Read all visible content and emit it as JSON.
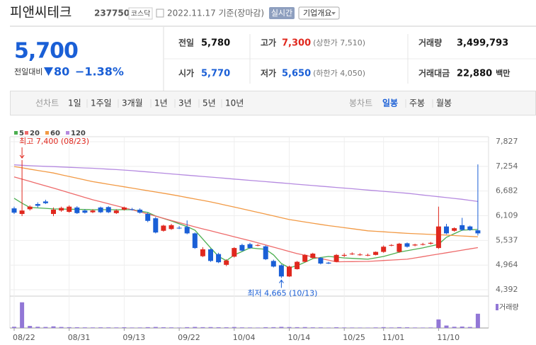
{
  "header": {
    "name": "피앤씨테크",
    "code": "237750",
    "market": "코스닥",
    "date": "2022.11.17 기준(장마감)",
    "realtime": "실시간",
    "company_info": "기업개요"
  },
  "quote": {
    "price": "5,700",
    "change_label": "전일대비",
    "change": "80",
    "change_pct": "−1.38%"
  },
  "stats": [
    [
      {
        "label": "전일",
        "value": "5,780",
        "color": "#111"
      },
      {
        "label": "고가",
        "value": "7,300",
        "note": "(상한가 7,510)",
        "color": "#e0281e"
      },
      {
        "label": "거래량",
        "value": "3,499,793",
        "color": "#111"
      }
    ],
    [
      {
        "label": "시가",
        "value": "5,770",
        "color": "#1a5fd6"
      },
      {
        "label": "저가",
        "value": "5,650",
        "note": "(하한가 4,050)",
        "color": "#1a5fd6"
      },
      {
        "label": "거래대금",
        "value": "22,880",
        "unit": "백만",
        "color": "#111"
      }
    ]
  ],
  "tabs": {
    "line_label": "선차트",
    "line_periods": [
      "1일",
      "1주일",
      "3개월",
      "1년",
      "3년",
      "5년",
      "10년"
    ],
    "candle_label": "봉차트",
    "candle_periods": [
      "일봉",
      "주봉",
      "월봉"
    ]
  },
  "chart_data": {
    "type": "candlestick",
    "categories": [
      "08/22",
      null,
      null,
      null,
      null,
      null,
      null,
      "08/31",
      null,
      null,
      null,
      null,
      null,
      null,
      "09/13",
      null,
      null,
      null,
      null,
      null,
      null,
      "09/22",
      null,
      null,
      null,
      null,
      null,
      null,
      "10/04",
      null,
      null,
      null,
      null,
      null,
      null,
      "10/14",
      null,
      null,
      null,
      null,
      null,
      null,
      "10/25",
      null,
      null,
      null,
      null,
      "11/01",
      null,
      null,
      null,
      null,
      null,
      null,
      "11/10",
      null,
      null,
      null,
      null,
      null
    ],
    "open": [
      6280,
      6150,
      6260,
      6380,
      6440,
      6150,
      6230,
      6200,
      6300,
      6230,
      6190,
      6300,
      6310,
      6170,
      6250,
      6260,
      6250,
      6150,
      6050,
      5760,
      5800,
      5830,
      5850,
      5700,
      5170,
      5330,
      5220,
      4970,
      5160,
      5430,
      5450,
      5420,
      5400,
      5060,
      4960,
      4700,
      4870,
      5040,
      5130,
      5130,
      5020,
      5040,
      5180,
      5220,
      5200,
      5190,
      5200,
      5270,
      5420,
      5270,
      5470,
      5420,
      5440,
      5460,
      5360,
      5860,
      5760,
      5890,
      5860,
      5770
    ],
    "high": [
      6320,
      7400,
      6350,
      6420,
      6480,
      6300,
      6320,
      6350,
      6330,
      6260,
      6260,
      6320,
      6330,
      6260,
      6320,
      6290,
      6280,
      6180,
      6080,
      5900,
      5920,
      5870,
      6000,
      5720,
      5380,
      5350,
      5250,
      5100,
      5380,
      5460,
      5480,
      5450,
      5420,
      5090,
      4980,
      4950,
      5060,
      5220,
      5250,
      5150,
      5040,
      5220,
      5240,
      5260,
      5240,
      5230,
      5280,
      5420,
      5450,
      5480,
      5490,
      5460,
      5480,
      5500,
      6320,
      5920,
      5840,
      6060,
      5880,
      7300
    ],
    "low": [
      6150,
      6100,
      6230,
      6300,
      6380,
      6100,
      6200,
      6180,
      6150,
      6160,
      6170,
      6170,
      6170,
      6150,
      6230,
      6230,
      6160,
      5960,
      5700,
      5740,
      5780,
      5800,
      5680,
      5340,
      5150,
      5040,
      5010,
      4940,
      5140,
      5280,
      5340,
      5400,
      5080,
      4910,
      4665,
      4690,
      4860,
      5030,
      5110,
      4980,
      4990,
      5030,
      5150,
      5200,
      5180,
      5170,
      5190,
      5250,
      5400,
      5250,
      5370,
      5400,
      5420,
      5440,
      5340,
      5680,
      5740,
      5760,
      5760,
      5650
    ],
    "close": [
      6180,
      6230,
      6320,
      6340,
      6400,
      6250,
      6290,
      6320,
      6170,
      6180,
      6230,
      6190,
      6190,
      6230,
      6300,
      6250,
      6180,
      5990,
      5720,
      5880,
      5890,
      5820,
      5700,
      5360,
      5330,
      5060,
      5030,
      5070,
      5360,
      5300,
      5360,
      5430,
      5100,
      4930,
      4700,
      4930,
      5040,
      5200,
      5230,
      5000,
      5000,
      5200,
      5200,
      5230,
      5210,
      5200,
      5270,
      5390,
      5430,
      5460,
      5390,
      5440,
      5450,
      5480,
      5860,
      5700,
      5820,
      5780,
      5780,
      5700
    ],
    "volume": [
      300000,
      6300000,
      500000,
      300000,
      250000,
      400000,
      250000,
      200000,
      180000,
      150000,
      140000,
      160000,
      150000,
      140000,
      180000,
      120000,
      130000,
      200000,
      250000,
      180000,
      150000,
      110000,
      200000,
      260000,
      200000,
      220000,
      180000,
      170000,
      240000,
      150000,
      130000,
      110000,
      190000,
      200000,
      280000,
      230000,
      200000,
      220000,
      160000,
      150000,
      110000,
      180000,
      130000,
      120000,
      110000,
      100000,
      140000,
      210000,
      130000,
      200000,
      170000,
      120000,
      110000,
      130000,
      2100000,
      600000,
      300000,
      350000,
      250000,
      3499793
    ],
    "volume_label": "거래량",
    "volume_color": "#9277d6",
    "volume_ylim": [
      0,
      6600000
    ],
    "up_color": "#e0281e",
    "down_color": "#1a5fd6",
    "moving_averages": [
      {
        "name": "5",
        "color": "#4caf50",
        "values": [
          6514,
          6400,
          6300,
          6290,
          6280,
          6267,
          6264,
          6260,
          6257,
          6254,
          6250,
          6250,
          6250,
          6250,
          6250,
          6250,
          6218,
          6185,
          6103,
          6045,
          5988,
          5922,
          5856,
          5774,
          5568,
          5363,
          5165,
          5066,
          5198,
          5280,
          5363,
          5346,
          5330,
          5200,
          5000,
          4900,
          4950,
          5030,
          5115,
          5140,
          5165,
          5148,
          5130,
          5120,
          5110,
          5100,
          5132,
          5165,
          5214,
          5264,
          5297,
          5330,
          5363,
          5404,
          5445,
          5610,
          5692,
          5774,
          5782,
          5790
        ]
      },
      {
        "name": "20",
        "color": "#ee6b6b",
        "values": [
          7010,
          6958,
          6906,
          6854,
          6802,
          6750,
          6696,
          6642,
          6588,
          6534,
          6480,
          6433,
          6387,
          6340,
          6293,
          6247,
          6200,
          6150,
          6100,
          6050,
          6000,
          5950,
          5900,
          5850,
          5804,
          5759,
          5713,
          5667,
          5621,
          5576,
          5530,
          5480,
          5430,
          5380,
          5330,
          5280,
          5230,
          5192,
          5154,
          5116,
          5078,
          5040,
          5043,
          5045,
          5048,
          5050,
          5060,
          5070,
          5080,
          5090,
          5100,
          5130,
          5160,
          5190,
          5220,
          5250,
          5280,
          5310,
          5340,
          5370
        ]
      },
      {
        "name": "60",
        "color": "#f29a45",
        "values": [
          7250,
          7220,
          7190,
          7160,
          7130,
          7100,
          7060,
          7020,
          6980,
          6940,
          6900,
          6870,
          6840,
          6810,
          6780,
          6750,
          6720,
          6690,
          6660,
          6630,
          6600,
          6566,
          6532,
          6498,
          6464,
          6430,
          6390,
          6350,
          6310,
          6270,
          6230,
          6188,
          6146,
          6104,
          6062,
          6020,
          5992,
          5964,
          5936,
          5908,
          5880,
          5856,
          5832,
          5808,
          5784,
          5760,
          5748,
          5736,
          5724,
          5712,
          5700,
          5692,
          5684,
          5676,
          5668,
          5660,
          5650,
          5640,
          5630,
          5620
        ]
      },
      {
        "name": "120",
        "color": "#b58ae0",
        "values": [
          7290,
          7280,
          7270,
          7262,
          7255,
          7248,
          7240,
          7232,
          7225,
          7218,
          7210,
          7200,
          7190,
          7180,
          7168,
          7155,
          7140,
          7125,
          7110,
          7095,
          7080,
          7065,
          7050,
          7035,
          7020,
          7005,
          6990,
          6975,
          6960,
          6945,
          6930,
          6915,
          6900,
          6885,
          6870,
          6855,
          6840,
          6825,
          6810,
          6795,
          6780,
          6765,
          6750,
          6735,
          6720,
          6705,
          6690,
          6675,
          6660,
          6645,
          6630,
          6610,
          6590,
          6570,
          6550,
          6530,
          6510,
          6490,
          6465,
          6440
        ]
      }
    ],
    "ylim": [
      4392,
      7827
    ],
    "yticks": [
      {
        "value": 4392,
        "label": "4,392"
      },
      {
        "value": 4964,
        "label": "4,964"
      },
      {
        "value": 5537,
        "label": "5,537"
      },
      {
        "value": 6109,
        "label": "6,109"
      },
      {
        "value": 6682,
        "label": "6,682"
      },
      {
        "value": 7254,
        "label": "7,254"
      },
      {
        "value": 7827,
        "label": "7,827"
      }
    ],
    "grid": true,
    "max_annotation": "최고 7,400 (08/23)",
    "min_annotation": "최저 4,665 (10/13)"
  }
}
